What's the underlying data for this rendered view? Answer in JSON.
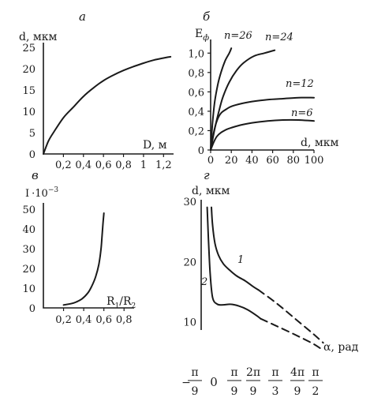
{
  "chart_data": [
    {
      "type": "line",
      "panel_letter": "а",
      "ylabel": "d, мкм",
      "xlabel": "D, м",
      "x_ticks": [
        "0,2",
        "0,4",
        "0,6",
        "0,8",
        "1",
        "1,2"
      ],
      "y_ticks": [
        "0",
        "5",
        "10",
        "15",
        "20",
        "25"
      ],
      "xlim": [
        0,
        1.3
      ],
      "ylim": [
        0,
        25
      ],
      "series": [
        {
          "x": [
            0,
            0.05,
            0.1,
            0.2,
            0.3,
            0.4,
            0.5,
            0.6,
            0.7,
            0.8,
            0.9,
            1.0,
            1.1,
            1.2,
            1.27
          ],
          "y": [
            0,
            3,
            5,
            8.5,
            11,
            13.5,
            15.5,
            17.2,
            18.5,
            19.6,
            20.5,
            21.3,
            22,
            22.5,
            22.8
          ]
        }
      ]
    },
    {
      "type": "line",
      "panel_letter": "б",
      "ylabel": "E_ф",
      "xlabel": "d, мкм",
      "x_ticks": [
        "0",
        "20",
        "40",
        "60",
        "80",
        "100"
      ],
      "y_ticks": [
        "0",
        "0,2",
        "0,4",
        "0,6",
        "0,8",
        "1,0"
      ],
      "xlim": [
        0,
        100
      ],
      "ylim": [
        0,
        1.1
      ],
      "series": [
        {
          "name": "n=26",
          "x": [
            0,
            2,
            4,
            7,
            10,
            14,
            18,
            20
          ],
          "y": [
            0,
            0.3,
            0.5,
            0.68,
            0.8,
            0.92,
            1.0,
            1.05
          ]
        },
        {
          "name": "n=24",
          "x": [
            0,
            4,
            8,
            12,
            18,
            25,
            32,
            42,
            52,
            62
          ],
          "y": [
            0,
            0.22,
            0.4,
            0.55,
            0.7,
            0.82,
            0.9,
            0.97,
            1.0,
            1.03
          ]
        },
        {
          "name": "n=12",
          "x": [
            0,
            3,
            6,
            10,
            15,
            20,
            30,
            40,
            55,
            70,
            85,
            100
          ],
          "y": [
            0,
            0.18,
            0.3,
            0.38,
            0.42,
            0.45,
            0.48,
            0.5,
            0.52,
            0.53,
            0.54,
            0.54
          ]
        },
        {
          "name": "n=6",
          "x": [
            0,
            3,
            6,
            10,
            15,
            20,
            30,
            40,
            55,
            70,
            85,
            100
          ],
          "y": [
            0,
            0.08,
            0.14,
            0.18,
            0.21,
            0.23,
            0.26,
            0.28,
            0.3,
            0.31,
            0.31,
            0.3
          ]
        }
      ]
    },
    {
      "type": "line",
      "panel_letter": "в",
      "ylabel": "I·10⁻³",
      "xlabel": "R₁/R₂",
      "x_ticks": [
        "0,2",
        "0,4",
        "0,6",
        "0,8"
      ],
      "y_ticks": [
        "0",
        "10",
        "20",
        "30",
        "40",
        "50"
      ],
      "xlim": [
        0,
        0.9
      ],
      "ylim": [
        0,
        52
      ],
      "series": [
        {
          "x": [
            0.2,
            0.3,
            0.38,
            0.44,
            0.48,
            0.52,
            0.55,
            0.57,
            0.58,
            0.59,
            0.6
          ],
          "y": [
            1.5,
            2.5,
            4.5,
            7.5,
            11,
            16,
            22,
            29,
            35,
            42,
            48
          ]
        }
      ]
    },
    {
      "type": "line",
      "panel_letter": "г",
      "ylabel": "d, мкм",
      "xlabel": "α, рад",
      "x_ticks": [
        "−π/9",
        "0",
        "π/9",
        "2π/9",
        "π/3",
        "4π/9",
        "π/2"
      ],
      "y_ticks": [
        "10",
        "20",
        "30"
      ],
      "xlim": [
        -0.45,
        1.65
      ],
      "ylim": [
        6,
        30
      ],
      "series": [
        {
          "name": "1",
          "x": [
            -0.28,
            -0.26,
            -0.22,
            -0.16,
            -0.08,
            0.02,
            0.14,
            0.28,
            0.42,
            0.5
          ],
          "y": [
            29,
            26,
            23,
            21,
            19.6,
            18.6,
            17.6,
            16.8,
            15.8,
            15.3
          ]
        },
        {
          "name": "2",
          "x": [
            -0.35,
            -0.33,
            -0.3,
            -0.26,
            -0.18,
            -0.08,
            0.04,
            0.18,
            0.32,
            0.46,
            0.54
          ],
          "y": [
            29,
            24,
            18,
            14,
            12.9,
            12.8,
            12.9,
            12.6,
            12,
            11.1,
            10.5
          ]
        }
      ],
      "dashed_continuations": [
        {
          "name": "1",
          "x": [
            0.5,
            0.8,
            1.1,
            1.4,
            1.58
          ],
          "y": [
            15.3,
            13.1,
            10.6,
            8.1,
            6.5
          ]
        },
        {
          "name": "2",
          "x": [
            0.54,
            0.8,
            1.1,
            1.4,
            1.53
          ],
          "y": [
            10.5,
            9.3,
            7.9,
            6.4,
            5.6
          ]
        }
      ]
    }
  ]
}
